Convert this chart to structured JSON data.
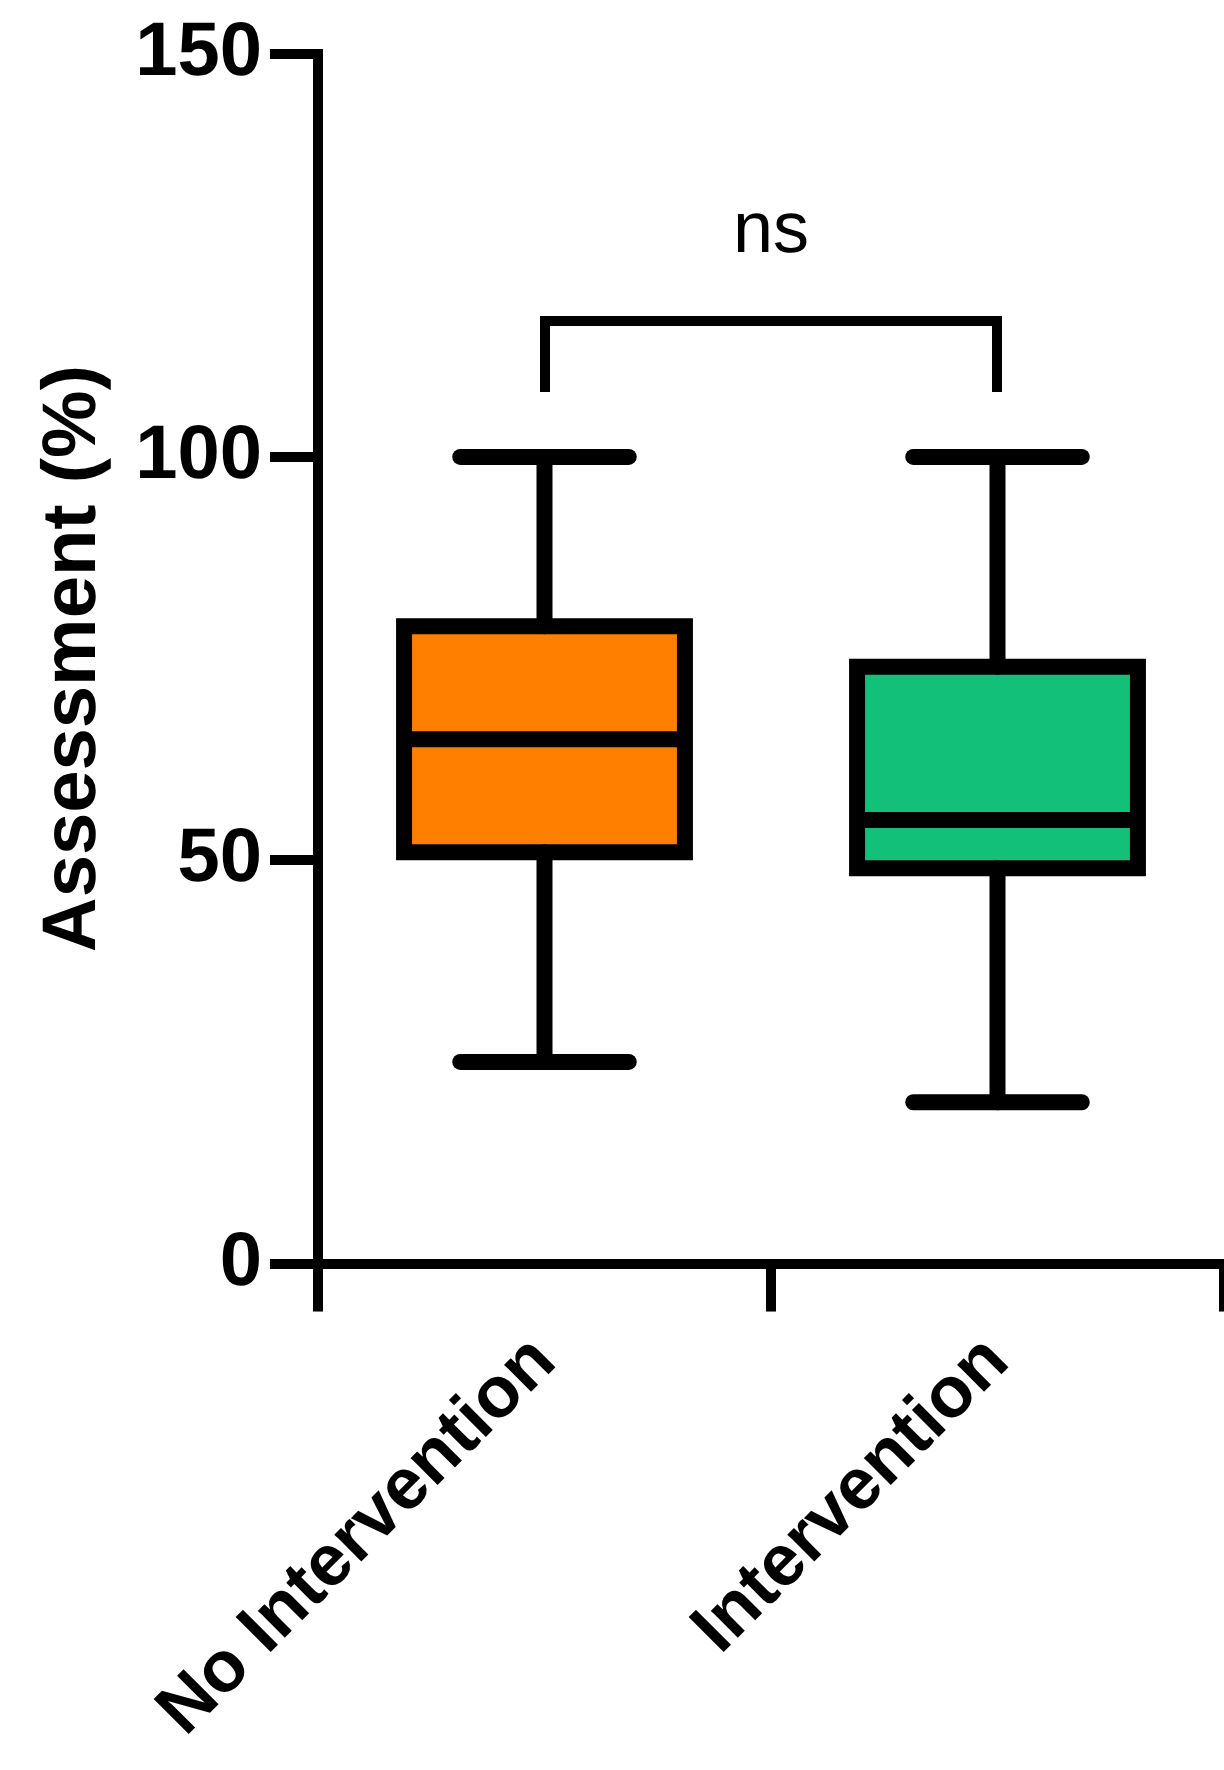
{
  "chart_data": {
    "type": "box",
    "ylabel": "Assessment (%)",
    "categories": [
      "No Intervention",
      "Intervention"
    ],
    "colors": [
      "#ff8000",
      "#12c07a"
    ],
    "boxes": [
      {
        "low": 25,
        "q1": 51,
        "median": 65,
        "q3": 79,
        "high": 100
      },
      {
        "low": 20,
        "q1": 49,
        "median": 55,
        "q3": 74,
        "high": 100
      }
    ],
    "ylim": [
      0,
      150
    ],
    "yticks": [
      0,
      50,
      100,
      150
    ],
    "grid": false,
    "legend": false,
    "annotations": [
      "ns"
    ]
  }
}
